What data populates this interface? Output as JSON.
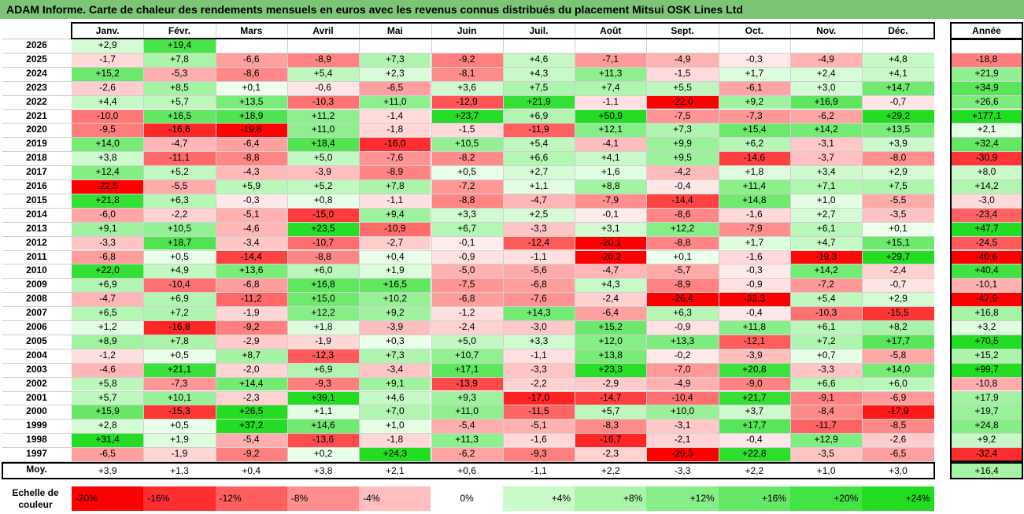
{
  "title": "ADAM Informe. Carte de chaleur des rendements mensuels en euros avec les revenus connus distribués du placement Mitsui OSK Lines Ltd",
  "year_col_label": "Année",
  "avg_label": "Moy.",
  "scale_label": "Echelle de couleur",
  "colors": {
    "title_bar": "#7cc576",
    "negative_max": "#ff0000",
    "positive_max": "#22dd22",
    "neutral": "#ffffff"
  },
  "chart_data": {
    "type": "heatmap",
    "columns": [
      "Janv.",
      "Févr.",
      "Mars",
      "Avril",
      "Mai",
      "Juin",
      "Juil.",
      "Août",
      "Sept.",
      "Oct.",
      "Nov.",
      "Déc."
    ],
    "rows": [
      {
        "year": "2026",
        "values": [
          "+2,9",
          "+19,4",
          "",
          "",
          "",
          "",
          "",
          "",
          "",
          "",
          "",
          ""
        ],
        "annual": ""
      },
      {
        "year": "2025",
        "values": [
          "-1,7",
          "+7,8",
          "-6,6",
          "-8,9",
          "+7,3",
          "-9,2",
          "+4,6",
          "-7,1",
          "-4,9",
          "-0,3",
          "-4,9",
          "+4,8"
        ],
        "annual": "-18,8"
      },
      {
        "year": "2024",
        "values": [
          "+15,2",
          "-5,3",
          "-8,6",
          "+5,4",
          "+2,3",
          "-8,1",
          "+4,3",
          "+11,3",
          "-1,5",
          "+1,7",
          "+2,4",
          "+4,1"
        ],
        "annual": "+21,9"
      },
      {
        "year": "2023",
        "values": [
          "-2,6",
          "+8,5",
          "+0,1",
          "-0,6",
          "-6,5",
          "+3,6",
          "+7,5",
          "+7,4",
          "+5,5",
          "-6,1",
          "+3,0",
          "+14,7"
        ],
        "annual": "+34,9"
      },
      {
        "year": "2022",
        "values": [
          "+4,4",
          "+5,7",
          "+13,5",
          "-10,3",
          "+11,0",
          "-12,9",
          "+21,9",
          "-1,1",
          "-22,0",
          "+9,2",
          "+16,9",
          "-0,7"
        ],
        "annual": "+26,6"
      },
      {
        "year": "2021",
        "values": [
          "-10,0",
          "+16,5",
          "+18,9",
          "+11,2",
          "-1,4",
          "+23,7",
          "+6,9",
          "+50,9",
          "-7,5",
          "-7,3",
          "-6,2",
          "+29,2"
        ],
        "annual": "+177,1"
      },
      {
        "year": "2020",
        "values": [
          "-9,5",
          "-16,6",
          "-19,8",
          "+11,0",
          "-1,8",
          "-1,5",
          "-11,9",
          "+12,1",
          "+7,3",
          "+15,4",
          "+14,2",
          "+13,5"
        ],
        "annual": "+2,1"
      },
      {
        "year": "2019",
        "values": [
          "+14,0",
          "-4,7",
          "-6,4",
          "+18,4",
          "-16,0",
          "+10,5",
          "+5,4",
          "-4,1",
          "+9,9",
          "+6,2",
          "-3,1",
          "+3,9"
        ],
        "annual": "+32,4"
      },
      {
        "year": "2018",
        "values": [
          "+3,8",
          "-11,1",
          "-8,8",
          "+5,0",
          "-7,6",
          "-8,2",
          "+6,6",
          "+4,1",
          "+9,5",
          "-14,6",
          "-3,7",
          "-8,0"
        ],
        "annual": "-30,9"
      },
      {
        "year": "2017",
        "values": [
          "+12,4",
          "+5,2",
          "-4,3",
          "-3,9",
          "-8,9",
          "+0,5",
          "+2,7",
          "+1,6",
          "-4,2",
          "+1,8",
          "+3,4",
          "+2,9"
        ],
        "annual": "+8,0"
      },
      {
        "year": "2016",
        "values": [
          "-22,5",
          "-5,5",
          "+5,9",
          "+5,2",
          "+7,8",
          "-7,2",
          "+1,1",
          "+8,8",
          "-0,4",
          "+11,4",
          "+7,1",
          "+7,5"
        ],
        "annual": "+14,2"
      },
      {
        "year": "2015",
        "values": [
          "+21,8",
          "+6,3",
          "-0,3",
          "+0,8",
          "-1,1",
          "-8,8",
          "-4,7",
          "-7,9",
          "-14,4",
          "+14,8",
          "+1,0",
          "-5,5"
        ],
        "annual": "-3,0"
      },
      {
        "year": "2014",
        "values": [
          "-6,0",
          "-2,2",
          "-5,1",
          "-15,0",
          "+9,4",
          "+3,3",
          "+2,5",
          "-0,1",
          "-8,6",
          "-1,6",
          "+2,7",
          "-3,5"
        ],
        "annual": "-23,4"
      },
      {
        "year": "2013",
        "values": [
          "+9,1",
          "+10,5",
          "-4,6",
          "+23,5",
          "-10,9",
          "+6,7",
          "-3,3",
          "+3,1",
          "+12,2",
          "-7,9",
          "+6,1",
          "+0,1"
        ],
        "annual": "+47,7"
      },
      {
        "year": "2012",
        "values": [
          "-3,3",
          "+18,7",
          "-3,4",
          "-10,7",
          "-2,7",
          "-0,1",
          "-12,4",
          "-20,1",
          "-8,8",
          "+1,7",
          "+4,7",
          "+15,1"
        ],
        "annual": "-24,5"
      },
      {
        "year": "2011",
        "values": [
          "-6,8",
          "+0,5",
          "-14,4",
          "-8,8",
          "+0,4",
          "-0,9",
          "-1,1",
          "-20,2",
          "+0,1",
          "-1,6",
          "-19,3",
          "+29,7"
        ],
        "annual": "-40,6"
      },
      {
        "year": "2010",
        "values": [
          "+22,0",
          "+4,9",
          "+13,6",
          "+6,0",
          "+1,9",
          "-5,0",
          "-5,6",
          "-4,7",
          "-5,7",
          "-0,3",
          "+14,2",
          "-2,4"
        ],
        "annual": "+40,4"
      },
      {
        "year": "2009",
        "values": [
          "+6,9",
          "-10,4",
          "-6,8",
          "+16,8",
          "+16,5",
          "-7,5",
          "-6,8",
          "+4,3",
          "-8,9",
          "-0,9",
          "-7,2",
          "-0,7"
        ],
        "annual": "-10,1"
      },
      {
        "year": "2008",
        "values": [
          "-4,7",
          "+6,9",
          "-11,2",
          "+15,0",
          "+10,2",
          "-6,8",
          "-7,6",
          "-2,4",
          "-26,4",
          "-33,3",
          "+5,4",
          "+2,9"
        ],
        "annual": "-47,9"
      },
      {
        "year": "2007",
        "values": [
          "+6,5",
          "+7,2",
          "-1,9",
          "+12,2",
          "+9,2",
          "-1,2",
          "+14,3",
          "-6,4",
          "+6,3",
          "-0,4",
          "-10,3",
          "-15,5"
        ],
        "annual": "+16,8"
      },
      {
        "year": "2006",
        "values": [
          "+1,2",
          "-16,8",
          "-9,2",
          "+1,8",
          "-3,9",
          "-2,4",
          "-3,0",
          "+15,2",
          "-0,9",
          "+11,8",
          "+6,1",
          "+8,2"
        ],
        "annual": "+3,2"
      },
      {
        "year": "2005",
        "values": [
          "+8,9",
          "+7,8",
          "-2,9",
          "-1,9",
          "+0,3",
          "+5,0",
          "+3,3",
          "+12,0",
          "+13,3",
          "-12,1",
          "+7,2",
          "+17,7"
        ],
        "annual": "+70,5"
      },
      {
        "year": "2004",
        "values": [
          "-1,2",
          "+0,5",
          "+8,7",
          "-12,3",
          "+7,3",
          "+10,7",
          "-1,1",
          "+13,8",
          "-0,2",
          "-3,9",
          "+0,7",
          "-5,8"
        ],
        "annual": "+15,2"
      },
      {
        "year": "2003",
        "values": [
          "-4,6",
          "+21,1",
          "-2,0",
          "+6,9",
          "-3,4",
          "+17,1",
          "-3,3",
          "+23,3",
          "-7,0",
          "+20,8",
          "-3,3",
          "+14,0"
        ],
        "annual": "+99,7"
      },
      {
        "year": "2002",
        "values": [
          "+5,8",
          "-7,3",
          "+14,4",
          "-9,3",
          "+9,1",
          "-13,9",
          "-2,2",
          "-2,9",
          "-4,9",
          "-9,0",
          "+6,6",
          "+6,0"
        ],
        "annual": "-10,8"
      },
      {
        "year": "2001",
        "values": [
          "+5,7",
          "+10,1",
          "-2,3",
          "+39,1",
          "+4,6",
          "+9,3",
          "-17,0",
          "-14,7",
          "-10,4",
          "+21,7",
          "-9,1",
          "-6,9"
        ],
        "annual": "+17,9"
      },
      {
        "year": "2000",
        "values": [
          "+15,9",
          "-15,3",
          "+26,5",
          "+1,1",
          "+7,0",
          "+11,0",
          "-11,5",
          "+5,7",
          "+10,0",
          "+3,7",
          "-8,4",
          "-17,9"
        ],
        "annual": "+19,7"
      },
      {
        "year": "1999",
        "values": [
          "+2,8",
          "+0,5",
          "+37,2",
          "+14,6",
          "+1,0",
          "-5,4",
          "-5,1",
          "-8,3",
          "-3,1",
          "+17,7",
          "-11,7",
          "-8,5"
        ],
        "annual": "+24,8"
      },
      {
        "year": "1998",
        "values": [
          "+31,4",
          "+1,9",
          "-5,4",
          "-13,6",
          "-1,8",
          "+11,3",
          "-1,6",
          "-16,7",
          "-2,1",
          "-0,4",
          "+12,9",
          "-2,6"
        ],
        "annual": "+9,2"
      },
      {
        "year": "1997",
        "values": [
          "-6,5",
          "-1,9",
          "-9,2",
          "+0,2",
          "+24,3",
          "-6,2",
          "-9,3",
          "-2,3",
          "-29,3",
          "+22,8",
          "-3,5",
          "-6,5"
        ],
        "annual": "-32,4"
      }
    ],
    "averages": [
      "+3,9",
      "+1,3",
      "+0,4",
      "+3,8",
      "+2,1",
      "+0,6",
      "-1,1",
      "+2,2",
      "-3,3",
      "+2,2",
      "+1,0",
      "+3,0"
    ],
    "average_annual": "+16,4",
    "color_scale": [
      "-20%",
      "-16%",
      "-12%",
      "-8%",
      "-4%",
      "0%",
      "+4%",
      "+8%",
      "+12%",
      "+16%",
      "+20%",
      "+24%"
    ]
  }
}
